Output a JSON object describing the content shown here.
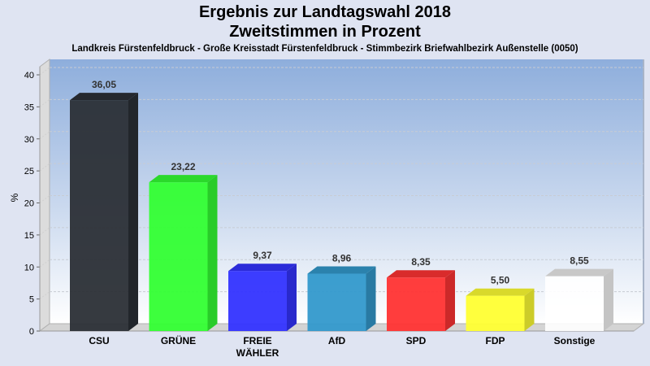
{
  "chart_data": {
    "type": "bar",
    "title": "Ergebnis zur Landtagswahl 2018",
    "subtitle": "Zweitstimmen in Prozent",
    "caption": "Landkreis Fürstenfeldbruck - Große Kreisstadt Fürstenfeldbruck - Stimmbezirk Briefwahlbezirk Außenstelle (0050)",
    "xlabel": "",
    "ylabel": "%",
    "ylim": [
      0,
      40
    ],
    "yticks": [
      0,
      5,
      10,
      15,
      20,
      25,
      30,
      35,
      40
    ],
    "grid": true,
    "legend": "none",
    "style": "3d",
    "categories": [
      "CSU",
      "GRÜNE",
      "FREIE\nWÄHLER",
      "AfD",
      "SPD",
      "FDP",
      "Sonstige"
    ],
    "values": [
      36.05,
      23.22,
      9.37,
      8.96,
      8.35,
      5.5,
      8.55
    ],
    "value_labels": [
      "36,05",
      "23,22",
      "9,37",
      "8,96",
      "8,35",
      "5,50",
      "8,55"
    ],
    "colors": [
      "#2b2f36",
      "#33ff33",
      "#3333ff",
      "#3399cc",
      "#ff3333",
      "#ffff33",
      "#ffffff"
    ]
  }
}
